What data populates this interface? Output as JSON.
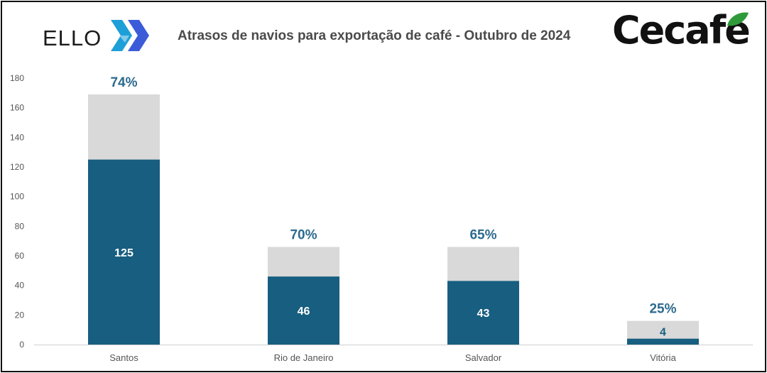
{
  "header": {
    "title": "Atrasos de navios para exportação de café - Outubro de 2024",
    "logo_left": "ELLO",
    "logo_right": "Cecafe"
  },
  "colors": {
    "delayed": "#175e80",
    "total": "#d9d9d9",
    "percent_label": "#2c6a8e",
    "axis_text": "#555555"
  },
  "chart_data": {
    "type": "bar",
    "stacked": true,
    "categories": [
      "Santos",
      "Rio de Janeiro",
      "Salvador",
      "Vitória"
    ],
    "series": [
      {
        "values": [
          125,
          46,
          43,
          4
        ],
        "labels": [
          "125",
          "46",
          "43",
          "4"
        ]
      },
      {
        "values": [
          44,
          20,
          23,
          12
        ]
      }
    ],
    "totals": [
      169,
      66,
      66,
      16
    ],
    "percent_labels": [
      "74%",
      "70%",
      "65%",
      "25%"
    ],
    "ylim": [
      0,
      180
    ],
    "yticks": [
      "0",
      "20",
      "40",
      "60",
      "80",
      "100",
      "120",
      "140",
      "160",
      "180"
    ],
    "grid": false,
    "legend": "none"
  }
}
